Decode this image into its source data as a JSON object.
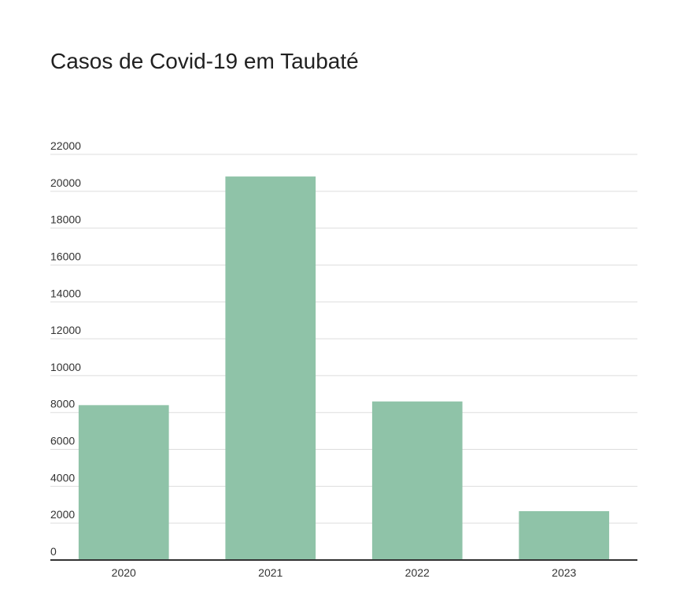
{
  "chart_data": {
    "type": "bar",
    "title": "Casos de Covid-19 em Taubaté",
    "xlabel": "",
    "ylabel": "",
    "categories": [
      "2020",
      "2021",
      "2022",
      "2023"
    ],
    "values": [
      8400,
      20800,
      8600,
      2650
    ],
    "ylim": [
      0,
      22000
    ],
    "yticks": [
      "0",
      "2000",
      "4000",
      "6000",
      "8000",
      "10000",
      "12000",
      "14000",
      "16000",
      "18000",
      "20000",
      "22000"
    ],
    "grid": true,
    "legend": "none",
    "colors": {
      "bar": "#8fc3a8",
      "grid": "#dddddd",
      "axis": "#333333"
    }
  }
}
